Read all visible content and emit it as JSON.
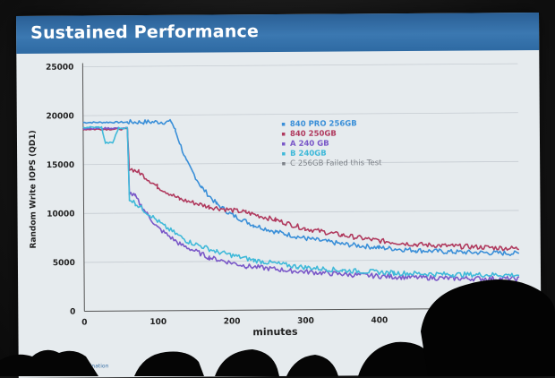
{
  "slide": {
    "title": "Sustained Performance",
    "footer": "Align with your imagination"
  },
  "colors": {
    "header": "#3b78b1",
    "series_840pro": "#3a8fd8",
    "series_840": "#b03a5e",
    "series_a": "#7a58c8",
    "series_b": "#3fb9d9",
    "series_c": "#7d8288"
  },
  "chart_data": {
    "type": "line",
    "title": "",
    "xlabel": "minutes",
    "ylabel": "Random Write IOPS (QD1)",
    "xlim": [
      0,
      590
    ],
    "ylim": [
      0,
      25000
    ],
    "xticks": [
      0,
      100,
      200,
      300,
      400
    ],
    "yticks": [
      0,
      5000,
      10000,
      15000,
      20000,
      25000
    ],
    "grid": true,
    "legend": "top-right",
    "series": [
      {
        "name": "840 PRO 256GB",
        "color": "#3a8fd8",
        "points": [
          [
            0,
            19300
          ],
          [
            60,
            19300
          ],
          [
            120,
            19300
          ],
          [
            125,
            18400
          ],
          [
            140,
            15200
          ],
          [
            160,
            12600
          ],
          [
            180,
            10900
          ],
          [
            200,
            9800
          ],
          [
            230,
            8700
          ],
          [
            260,
            8000
          ],
          [
            300,
            7300
          ],
          [
            350,
            6700
          ],
          [
            400,
            6300
          ],
          [
            450,
            6000
          ],
          [
            500,
            5800
          ],
          [
            590,
            5600
          ]
        ]
      },
      {
        "name": "840 250GB",
        "color": "#b03a5e",
        "points": [
          [
            0,
            18600
          ],
          [
            60,
            18600
          ],
          [
            62,
            14600
          ],
          [
            75,
            14200
          ],
          [
            100,
            12700
          ],
          [
            130,
            11400
          ],
          [
            170,
            10600
          ],
          [
            220,
            10000
          ],
          [
            260,
            9200
          ],
          [
            300,
            8300
          ],
          [
            350,
            7600
          ],
          [
            400,
            7000
          ],
          [
            450,
            6600
          ],
          [
            500,
            6400
          ],
          [
            590,
            6100
          ]
        ]
      },
      {
        "name": "A 240 GB",
        "color": "#7a58c8",
        "points": [
          [
            0,
            18700
          ],
          [
            60,
            18700
          ],
          [
            62,
            12100
          ],
          [
            70,
            11700
          ],
          [
            80,
            10500
          ],
          [
            100,
            8500
          ],
          [
            130,
            6800
          ],
          [
            170,
            5400
          ],
          [
            220,
            4500
          ],
          [
            280,
            4000
          ],
          [
            350,
            3600
          ],
          [
            420,
            3300
          ],
          [
            500,
            3100
          ],
          [
            590,
            3000
          ]
        ]
      },
      {
        "name": "B 240GB",
        "color": "#3fb9d9",
        "points": [
          [
            0,
            18800
          ],
          [
            25,
            18800
          ],
          [
            30,
            17200
          ],
          [
            40,
            17200
          ],
          [
            48,
            18700
          ],
          [
            60,
            18700
          ],
          [
            62,
            11500
          ],
          [
            70,
            11000
          ],
          [
            90,
            9800
          ],
          [
            110,
            8600
          ],
          [
            140,
            7100
          ],
          [
            180,
            6000
          ],
          [
            230,
            5100
          ],
          [
            290,
            4400
          ],
          [
            350,
            4000
          ],
          [
            420,
            3700
          ],
          [
            500,
            3500
          ],
          [
            590,
            3400
          ]
        ]
      }
    ],
    "legend_entries": [
      "840 PRO 256GB",
      "840 250GB",
      "A 240 GB",
      "B 240GB",
      "C 256GB Failed this Test"
    ]
  }
}
